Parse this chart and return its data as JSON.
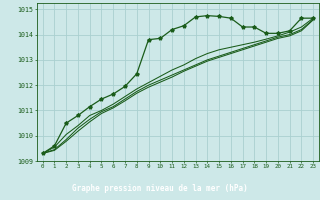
{
  "bg_color": "#cde8e8",
  "plot_bg_color": "#cde8e8",
  "footer_bg_color": "#2d6b2d",
  "grid_color": "#aad0d0",
  "line_color": "#1a5c1a",
  "xlabel": "Graphe pression niveau de la mer (hPa)",
  "hours": [
    0,
    1,
    2,
    3,
    4,
    5,
    6,
    7,
    8,
    9,
    10,
    11,
    12,
    13,
    14,
    15,
    16,
    17,
    18,
    19,
    20,
    21,
    22,
    23
  ],
  "series1": [
    1009.3,
    1009.6,
    1010.5,
    1010.8,
    1011.15,
    1011.45,
    1011.65,
    1011.95,
    1012.45,
    1013.8,
    1013.85,
    1014.2,
    1014.35,
    1014.7,
    1014.75,
    1014.72,
    1014.65,
    1014.3,
    1014.3,
    1014.05,
    1014.05,
    1014.15,
    1014.65,
    1014.65
  ],
  "series2": [
    1009.3,
    1009.55,
    1010.05,
    1010.4,
    1010.8,
    1011.0,
    1011.25,
    1011.55,
    1011.85,
    1012.1,
    1012.35,
    1012.6,
    1012.8,
    1013.05,
    1013.25,
    1013.4,
    1013.5,
    1013.6,
    1013.7,
    1013.82,
    1013.95,
    1014.1,
    1014.3,
    1014.65
  ],
  "series3": [
    1009.3,
    1009.45,
    1009.85,
    1010.3,
    1010.65,
    1010.95,
    1011.15,
    1011.45,
    1011.75,
    1012.0,
    1012.2,
    1012.4,
    1012.6,
    1012.8,
    1013.0,
    1013.15,
    1013.3,
    1013.45,
    1013.6,
    1013.75,
    1013.9,
    1014.0,
    1014.2,
    1014.6
  ],
  "series4": [
    1009.3,
    1009.42,
    1009.78,
    1010.18,
    1010.55,
    1010.88,
    1011.1,
    1011.38,
    1011.68,
    1011.92,
    1012.12,
    1012.32,
    1012.55,
    1012.75,
    1012.95,
    1013.1,
    1013.25,
    1013.4,
    1013.55,
    1013.7,
    1013.85,
    1013.95,
    1014.15,
    1014.58
  ],
  "ylim": [
    1009.0,
    1015.25
  ],
  "yticks": [
    1009,
    1010,
    1011,
    1012,
    1013,
    1014,
    1015
  ],
  "marker": "*"
}
